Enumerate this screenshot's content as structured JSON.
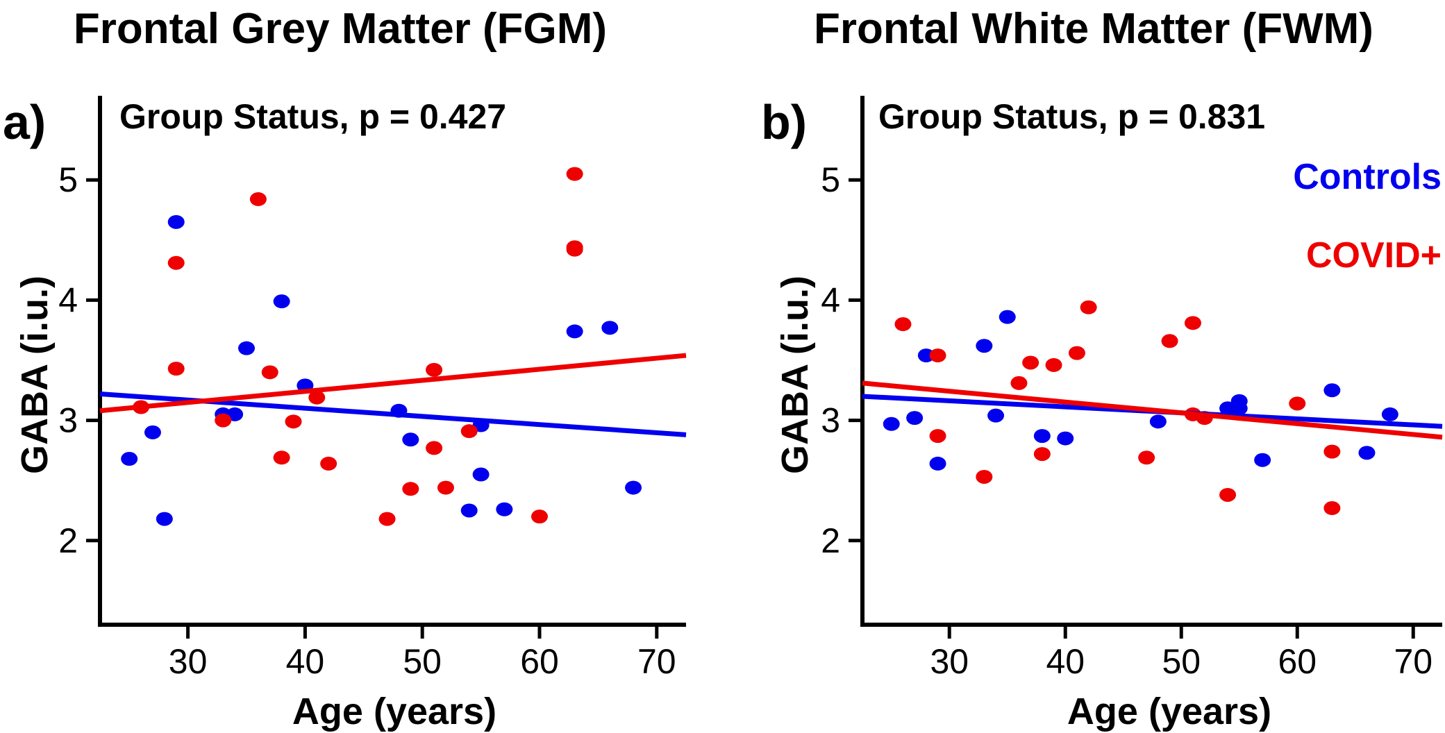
{
  "colors": {
    "controls": "#0000ee",
    "covid": "#ee0000",
    "axis": "#000000"
  },
  "chart_data": [
    {
      "type": "scatter",
      "title": "Frontal Grey Matter (FGM)",
      "panel": "a)",
      "annotation": "Group Status, p = 0.427",
      "xlabel": "Age (years)",
      "ylabel": "GABA (i.u.)",
      "xlim": [
        22.5,
        72.5
      ],
      "ylim": [
        1.3,
        5.7
      ],
      "xticks": [
        30,
        40,
        50,
        60,
        70
      ],
      "yticks": [
        2,
        3,
        4,
        5
      ],
      "grid": false,
      "legend": null,
      "series": [
        {
          "name": "Controls",
          "color": "#0000ee",
          "points": [
            [
              25,
              2.68
            ],
            [
              27,
              2.9
            ],
            [
              28,
              2.18
            ],
            [
              29,
              4.65
            ],
            [
              33,
              3.05
            ],
            [
              34,
              3.05
            ],
            [
              35,
              3.6
            ],
            [
              38,
              3.99
            ],
            [
              40,
              3.29
            ],
            [
              48,
              3.08
            ],
            [
              49,
              2.84
            ],
            [
              55,
              2.96
            ],
            [
              55,
              2.55
            ],
            [
              54,
              2.25
            ],
            [
              57,
              2.26
            ],
            [
              63,
              3.74
            ],
            [
              66,
              3.77
            ],
            [
              68,
              2.44
            ]
          ],
          "fit": [
            [
              22.5,
              3.22
            ],
            [
              72.5,
              2.88
            ]
          ]
        },
        {
          "name": "COVID+",
          "color": "#ee0000",
          "points": [
            [
              26,
              3.11
            ],
            [
              29,
              4.31
            ],
            [
              29,
              3.43
            ],
            [
              33,
              3.0
            ],
            [
              36,
              4.84
            ],
            [
              37,
              3.4
            ],
            [
              38,
              2.69
            ],
            [
              39,
              2.99
            ],
            [
              41,
              3.19
            ],
            [
              42,
              2.64
            ],
            [
              47,
              2.18
            ],
            [
              49,
              2.43
            ],
            [
              51,
              3.42
            ],
            [
              51,
              2.77
            ],
            [
              52,
              2.44
            ],
            [
              54,
              2.91
            ],
            [
              60,
              2.2
            ],
            [
              63,
              5.05
            ],
            [
              63,
              4.44
            ],
            [
              63,
              4.42
            ]
          ],
          "fit": [
            [
              22.5,
              3.08
            ],
            [
              72.5,
              3.54
            ]
          ]
        }
      ]
    },
    {
      "type": "scatter",
      "title": "Frontal White Matter (FWM)",
      "panel": "b)",
      "annotation": "Group Status, p = 0.831",
      "xlabel": "Age (years)",
      "ylabel": "GABA (i.u.)",
      "xlim": [
        22.5,
        72.5
      ],
      "ylim": [
        1.3,
        5.7
      ],
      "xticks": [
        30,
        40,
        50,
        60,
        70
      ],
      "yticks": [
        2,
        3,
        4,
        5
      ],
      "grid": false,
      "legend": {
        "position": "top-right",
        "entries": [
          "Controls",
          "COVID+"
        ]
      },
      "series": [
        {
          "name": "Controls",
          "color": "#0000ee",
          "points": [
            [
              25,
              2.97
            ],
            [
              27,
              3.02
            ],
            [
              28,
              3.54
            ],
            [
              29,
              2.64
            ],
            [
              33,
              3.62
            ],
            [
              34,
              3.04
            ],
            [
              35,
              3.86
            ],
            [
              38,
              2.87
            ],
            [
              40,
              2.85
            ],
            [
              48,
              2.99
            ],
            [
              54,
              3.1
            ],
            [
              55,
              3.16
            ],
            [
              55,
              3.1
            ],
            [
              57,
              2.67
            ],
            [
              63,
              3.25
            ],
            [
              66,
              2.73
            ],
            [
              68,
              3.05
            ]
          ],
          "fit": [
            [
              22.5,
              3.2
            ],
            [
              72.5,
              2.95
            ]
          ]
        },
        {
          "name": "COVID+",
          "color": "#ee0000",
          "points": [
            [
              26,
              3.8
            ],
            [
              29,
              3.54
            ],
            [
              29,
              2.87
            ],
            [
              33,
              2.53
            ],
            [
              36,
              3.31
            ],
            [
              37,
              3.48
            ],
            [
              38,
              2.72
            ],
            [
              39,
              3.46
            ],
            [
              41,
              3.56
            ],
            [
              42,
              3.94
            ],
            [
              47,
              2.69
            ],
            [
              49,
              3.66
            ],
            [
              51,
              3.81
            ],
            [
              51,
              3.05
            ],
            [
              52,
              3.02
            ],
            [
              54,
              2.38
            ],
            [
              60,
              3.14
            ],
            [
              63,
              2.74
            ],
            [
              63,
              2.27
            ]
          ],
          "fit": [
            [
              22.5,
              3.31
            ],
            [
              72.5,
              2.86
            ]
          ]
        }
      ]
    }
  ]
}
